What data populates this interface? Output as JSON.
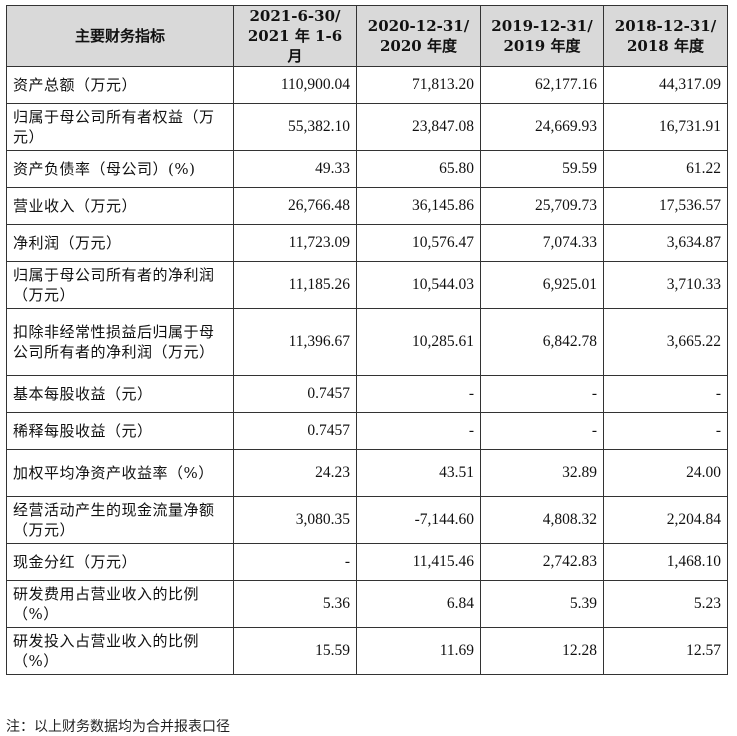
{
  "table": {
    "headers": [
      [
        "主要财务指标"
      ],
      [
        "2021-6-30/",
        "2021 年 1-6 月"
      ],
      [
        "2020-12-31/",
        "2020 年度"
      ],
      [
        "2019-12-31/",
        "2019 年度"
      ],
      [
        "2018-12-31/",
        "2018 年度"
      ]
    ],
    "rows": [
      {
        "label": "资产总额（万元）",
        "values": [
          "110,900.04",
          "71,813.20",
          "62,177.16",
          "44,317.09"
        ]
      },
      {
        "label": "归属于母公司所有者权益（万元）",
        "values": [
          "55,382.10",
          "23,847.08",
          "24,669.93",
          "16,731.91"
        ]
      },
      {
        "label": "资产负债率（母公司）(%)",
        "values": [
          "49.33",
          "65.80",
          "59.59",
          "61.22"
        ]
      },
      {
        "label": "营业收入（万元）",
        "values": [
          "26,766.48",
          "36,145.86",
          "25,709.73",
          "17,536.57"
        ]
      },
      {
        "label": "净利润（万元）",
        "values": [
          "11,723.09",
          "10,576.47",
          "7,074.33",
          "3,634.87"
        ]
      },
      {
        "label": "归属于母公司所有者的净利润（万元）",
        "values": [
          "11,185.26",
          "10,544.03",
          "6,925.01",
          "3,710.33"
        ]
      },
      {
        "label": "扣除非经常性损益后归属于母公司所有者的净利润（万元）",
        "values": [
          "11,396.67",
          "10,285.61",
          "6,842.78",
          "3,665.22"
        ]
      },
      {
        "label": "基本每股收益（元）",
        "values": [
          "0.7457",
          "-",
          "-",
          "-"
        ]
      },
      {
        "label": "稀释每股收益（元）",
        "values": [
          "0.7457",
          "-",
          "-",
          "-"
        ]
      },
      {
        "label": "加权平均净资产收益率（%）",
        "values": [
          "24.23",
          "43.51",
          "32.89",
          "24.00"
        ]
      },
      {
        "label": "经营活动产生的现金流量净额（万元）",
        "values": [
          "3,080.35",
          "-7,144.60",
          "4,808.32",
          "2,204.84"
        ]
      },
      {
        "label": "现金分红（万元）",
        "values": [
          "-",
          "11,415.46",
          "2,742.83",
          "1,468.10"
        ]
      },
      {
        "label": "研发费用占营业收入的比例（%）",
        "values": [
          "5.36",
          "6.84",
          "5.39",
          "5.23"
        ]
      },
      {
        "label": "研发投入占营业收入的比例（%）",
        "values": [
          "15.59",
          "11.69",
          "12.28",
          "12.57"
        ]
      }
    ]
  },
  "footnote": "注：以上财务数据均为合并报表口径"
}
